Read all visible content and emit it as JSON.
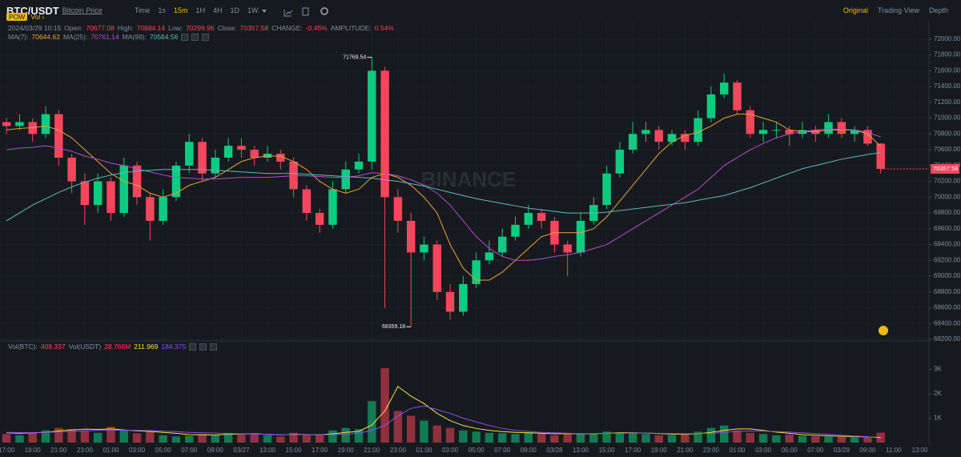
{
  "toolbar": {
    "symbol": "BTC/USDT",
    "symbol_link": "Bitcoin Price",
    "intervals": [
      "Time",
      "1s",
      "15m",
      "1H",
      "4H",
      "1D",
      "1W"
    ],
    "active_interval_index": 2,
    "views": [
      "Original",
      "Trading View",
      "Depth"
    ],
    "active_view_index": 0,
    "tags": [
      "POW",
      "Vol ›"
    ]
  },
  "info": {
    "time": "2024/03/29 10:15",
    "labels": [
      "Open:",
      "High:",
      "Low:",
      "Close:",
      "CHANGE:",
      "AMPLITUDE:"
    ],
    "change": "-0.45%",
    "amplitude": "0.54%"
  },
  "watermark": "BINANCE",
  "chart_data": [
    {
      "type": "candlestick",
      "up_color": "#0ecb81",
      "down_color": "#f6465d",
      "grid": true,
      "xlim": [
        -0.5,
        70.7
      ],
      "ylim": [
        68190,
        72090
      ],
      "xticks": [
        {
          "value": 0,
          "label": "17:00"
        },
        {
          "value": 2,
          "label": "19:00"
        },
        {
          "value": 4,
          "label": "21:00"
        },
        {
          "value": 6,
          "label": "23:00"
        },
        {
          "value": 8,
          "label": "01:00"
        },
        {
          "value": 10,
          "label": "03:00"
        },
        {
          "value": 12,
          "label": "05:00"
        },
        {
          "value": 14,
          "label": "07:00"
        },
        {
          "value": 16,
          "label": "09:00"
        },
        {
          "value": 18,
          "label": "03/27"
        },
        {
          "value": 20,
          "label": "13:00"
        },
        {
          "value": 22,
          "label": "15:00"
        },
        {
          "value": 24,
          "label": "17:00"
        },
        {
          "value": 26,
          "label": "19:00"
        },
        {
          "value": 28,
          "label": "21:00"
        },
        {
          "value": 30,
          "label": "23:00"
        },
        {
          "value": 32,
          "label": "01:00"
        },
        {
          "value": 34,
          "label": "03:00"
        },
        {
          "value": 36,
          "label": "05:00"
        },
        {
          "value": 38,
          "label": "07:00"
        },
        {
          "value": 40,
          "label": "09:00"
        },
        {
          "value": 42,
          "label": "03/28"
        },
        {
          "value": 44,
          "label": "13:00"
        },
        {
          "value": 46,
          "label": "15:00"
        },
        {
          "value": 48,
          "label": "17:00"
        },
        {
          "value": 50,
          "label": "19:00"
        },
        {
          "value": 52,
          "label": "21:00"
        },
        {
          "value": 54,
          "label": "23:00"
        },
        {
          "value": 56,
          "label": "01:00"
        },
        {
          "value": 58,
          "label": "03:00"
        },
        {
          "value": 60,
          "label": "05:00"
        },
        {
          "value": 62,
          "label": "07:00"
        },
        {
          "value": 64,
          "label": "03/29"
        },
        {
          "value": 66,
          "label": "09:00"
        },
        {
          "value": 68,
          "label": "11:00"
        },
        {
          "value": 70,
          "label": "13:00"
        }
      ],
      "yticks": [
        {
          "value": 72000,
          "label": "72000.00"
        },
        {
          "value": 71800,
          "label": "71800.00"
        },
        {
          "value": 71600,
          "label": "71600.00"
        },
        {
          "value": 71400,
          "label": "71400.00"
        },
        {
          "value": 71200,
          "label": "71200.00"
        },
        {
          "value": 71000,
          "label": "71000.00"
        },
        {
          "value": 70800,
          "label": "70800.00"
        },
        {
          "value": 70600,
          "label": "70600.00"
        },
        {
          "value": 70400,
          "label": "70400.00"
        },
        {
          "value": 70200,
          "label": "70200.00"
        },
        {
          "value": 70000,
          "label": "70000.00"
        },
        {
          "value": 69800,
          "label": "69800.00"
        },
        {
          "value": 69600,
          "label": "69600.00"
        },
        {
          "value": 69400,
          "label": "69400.00"
        },
        {
          "value": 69200,
          "label": "69200.00"
        },
        {
          "value": 69000,
          "label": "69000.00"
        },
        {
          "value": 68800,
          "label": "68800.00"
        },
        {
          "value": 68600,
          "label": "68600.00"
        },
        {
          "value": 68400,
          "label": "68400.00"
        },
        {
          "value": 68200,
          "label": "68200.00"
        }
      ],
      "open": [
        70950,
        70900,
        70950,
        70800,
        71050,
        70500,
        70200,
        69900,
        70200,
        69800,
        70400,
        70000,
        69700,
        70000,
        70400,
        70700,
        70300,
        70500,
        70650,
        70600,
        70500,
        70550,
        70450,
        70100,
        69800,
        69650,
        70100,
        70350,
        70450,
        71600,
        70000,
        69700,
        69300,
        69400,
        68800,
        68550,
        68900,
        69200,
        69300,
        69500,
        69650,
        69800,
        69700,
        69400,
        69300,
        69700,
        69900,
        70300,
        70600,
        70800,
        70850,
        70700,
        70800,
        70700,
        71000,
        71300,
        71450,
        71100,
        70800,
        70850,
        70850,
        70800,
        70850,
        70800,
        70950,
        70800,
        70850,
        70677.08
      ],
      "high": [
        71000,
        71050,
        71000,
        71150,
        71100,
        70550,
        70300,
        70300,
        70250,
        70500,
        70450,
        70050,
        70100,
        70450,
        70800,
        70750,
        70600,
        70750,
        70750,
        70650,
        70650,
        70600,
        70500,
        70150,
        69850,
        70200,
        70450,
        70550,
        71769.54,
        71650,
        70100,
        69800,
        69500,
        69450,
        68900,
        69000,
        69300,
        69450,
        69600,
        69750,
        69900,
        69850,
        69750,
        69450,
        69800,
        70000,
        70400,
        70700,
        70950,
        70950,
        70900,
        70850,
        70850,
        71100,
        71400,
        71560,
        71480,
        71150,
        70950,
        70950,
        70900,
        70950,
        70900,
        71050,
        71000,
        70900,
        70900,
        70684.14
      ],
      "low": [
        70800,
        70850,
        70700,
        70750,
        70400,
        70050,
        69650,
        69800,
        69700,
        69750,
        69900,
        69450,
        69650,
        69950,
        70300,
        70200,
        70250,
        70450,
        70500,
        70400,
        70450,
        70350,
        70000,
        69700,
        69550,
        69600,
        70050,
        70300,
        70350,
        68600,
        69550,
        68359.18,
        69200,
        68700,
        68450,
        68500,
        68850,
        69150,
        69250,
        69450,
        69600,
        69600,
        69300,
        69000,
        69250,
        69650,
        69850,
        70250,
        70550,
        70700,
        70600,
        70650,
        70600,
        70650,
        70950,
        71250,
        71050,
        70750,
        70700,
        70750,
        70650,
        70750,
        70700,
        70750,
        70750,
        70700,
        70650,
        70299.96
      ],
      "close": [
        70900,
        70950,
        70800,
        71050,
        70500,
        70200,
        69900,
        70200,
        69800,
        70400,
        70000,
        69700,
        70000,
        70400,
        70700,
        70300,
        70500,
        70650,
        70600,
        70500,
        70550,
        70450,
        70100,
        69800,
        69650,
        70100,
        70350,
        70450,
        71600,
        70000,
        69700,
        69300,
        69400,
        68800,
        68550,
        68900,
        69200,
        69300,
        69500,
        69650,
        69800,
        69700,
        69400,
        69300,
        69700,
        69900,
        70300,
        70600,
        70800,
        70850,
        70700,
        70800,
        70700,
        71000,
        71300,
        71450,
        71100,
        70800,
        70850,
        70850,
        70800,
        70850,
        70800,
        70950,
        70800,
        70850,
        70677.08,
        70357.58
      ],
      "series": [
        {
          "name": "MA(7):",
          "color": "#e9a23b",
          "values": [
            70850,
            70870,
            70880,
            70900,
            70850,
            70750,
            70600,
            70450,
            70300,
            70200,
            70150,
            70050,
            70000,
            70050,
            70150,
            70200,
            70250,
            70350,
            70450,
            70500,
            70520,
            70520,
            70450,
            70350,
            70200,
            70100,
            70050,
            70100,
            70250,
            70300,
            70250,
            70150,
            70000,
            69800,
            69400,
            69100,
            68950,
            68950,
            69050,
            69200,
            69350,
            69500,
            69550,
            69550,
            69550,
            69600,
            69750,
            69950,
            70150,
            70350,
            70550,
            70700,
            70780,
            70820,
            70900,
            71000,
            71050,
            71050,
            71000,
            70950,
            70850,
            70830,
            70830,
            70850,
            70850,
            70850,
            70800,
            70644.62
          ]
        },
        {
          "name": "MA(25):",
          "color": "#b44bd1",
          "values": [
            70600,
            70620,
            70630,
            70650,
            70620,
            70580,
            70520,
            70480,
            70430,
            70400,
            70360,
            70320,
            70280,
            70250,
            70240,
            70230,
            70230,
            70240,
            70250,
            70250,
            70250,
            70260,
            70270,
            70270,
            70260,
            70250,
            70250,
            70270,
            70310,
            70300,
            70270,
            70220,
            70150,
            70050,
            69900,
            69700,
            69500,
            69350,
            69250,
            69200,
            69200,
            69220,
            69250,
            69270,
            69300,
            69350,
            69400,
            69500,
            69600,
            69700,
            69800,
            69900,
            70000,
            70100,
            70250,
            70400,
            70500,
            70600,
            70680,
            70750,
            70800,
            70830,
            70850,
            70860,
            70860,
            70850,
            70820,
            70761.14
          ]
        },
        {
          "name": "MA(99):",
          "color": "#5fb8c0",
          "values": [
            69700,
            69800,
            69900,
            69980,
            70060,
            70130,
            70190,
            70240,
            70280,
            70310,
            70330,
            70340,
            70350,
            70350,
            70350,
            70350,
            70340,
            70330,
            70320,
            70310,
            70300,
            70300,
            70300,
            70290,
            70280,
            70270,
            70260,
            70250,
            70240,
            70220,
            70200,
            70170,
            70140,
            70100,
            70060,
            70020,
            69980,
            69950,
            69920,
            69890,
            69860,
            69840,
            69820,
            69800,
            69800,
            69800,
            69810,
            69830,
            69850,
            69870,
            69890,
            69910,
            69930,
            69960,
            69990,
            70020,
            70070,
            70120,
            70180,
            70240,
            70300,
            70360,
            70400,
            70440,
            70480,
            70510,
            70540,
            70564.56
          ]
        }
      ]
    },
    {
      "type": "bar",
      "legend_labels": [
        "Vol(BTC):",
        "Vol(USDT)"
      ],
      "usdt_value": "28.766M",
      "ylim": [
        0,
        4100
      ],
      "yticks": [
        {
          "value": 3000,
          "label": "3K"
        },
        {
          "value": 2000,
          "label": "2K"
        },
        {
          "value": 1000,
          "label": "1K"
        }
      ],
      "values": [
        350,
        300,
        420,
        500,
        600,
        550,
        480,
        400,
        650,
        500,
        380,
        450,
        300,
        250,
        280,
        350,
        300,
        400,
        320,
        380,
        300,
        250,
        400,
        350,
        300,
        500,
        600,
        550,
        1700,
        3050,
        1300,
        1100,
        900,
        700,
        600,
        500,
        450,
        400,
        380,
        350,
        420,
        360,
        300,
        400,
        350,
        380,
        450,
        420,
        400,
        350,
        300,
        320,
        380,
        450,
        600,
        700,
        500,
        400,
        350,
        300,
        330,
        280,
        260,
        250,
        230,
        220,
        200,
        408.337
      ],
      "series": [
        {
          "color": "#f3e23f",
          "values": [
            400,
            380,
            400,
            420,
            480,
            520,
            550,
            540,
            560,
            520,
            480,
            460,
            420,
            380,
            330,
            320,
            310,
            340,
            350,
            360,
            340,
            320,
            340,
            330,
            320,
            360,
            420,
            460,
            720,
            1300,
            2300,
            1900,
            1600,
            1200,
            900,
            700,
            580,
            500,
            450,
            420,
            400,
            380,
            360,
            370,
            360,
            360,
            380,
            400,
            400,
            390,
            370,
            350,
            340,
            360,
            420,
            500,
            560,
            560,
            500,
            430,
            380,
            330,
            300,
            280,
            260,
            250,
            230,
            211.969
          ]
        },
        {
          "color": "#8f4fe0",
          "values": [
            420,
            410,
            410,
            420,
            440,
            460,
            480,
            500,
            510,
            510,
            500,
            490,
            470,
            450,
            420,
            400,
            390,
            370,
            360,
            350,
            340,
            330,
            330,
            330,
            320,
            330,
            350,
            380,
            500,
            700,
            1100,
            1400,
            1500,
            1350,
            1200,
            1000,
            850,
            700,
            580,
            500,
            460,
            420,
            400,
            380,
            370,
            370,
            380,
            380,
            390,
            390,
            380,
            370,
            360,
            370,
            380,
            420,
            460,
            480,
            470,
            450,
            430,
            400,
            370,
            340,
            300,
            270,
            240,
            184.375
          ]
        }
      ]
    }
  ]
}
